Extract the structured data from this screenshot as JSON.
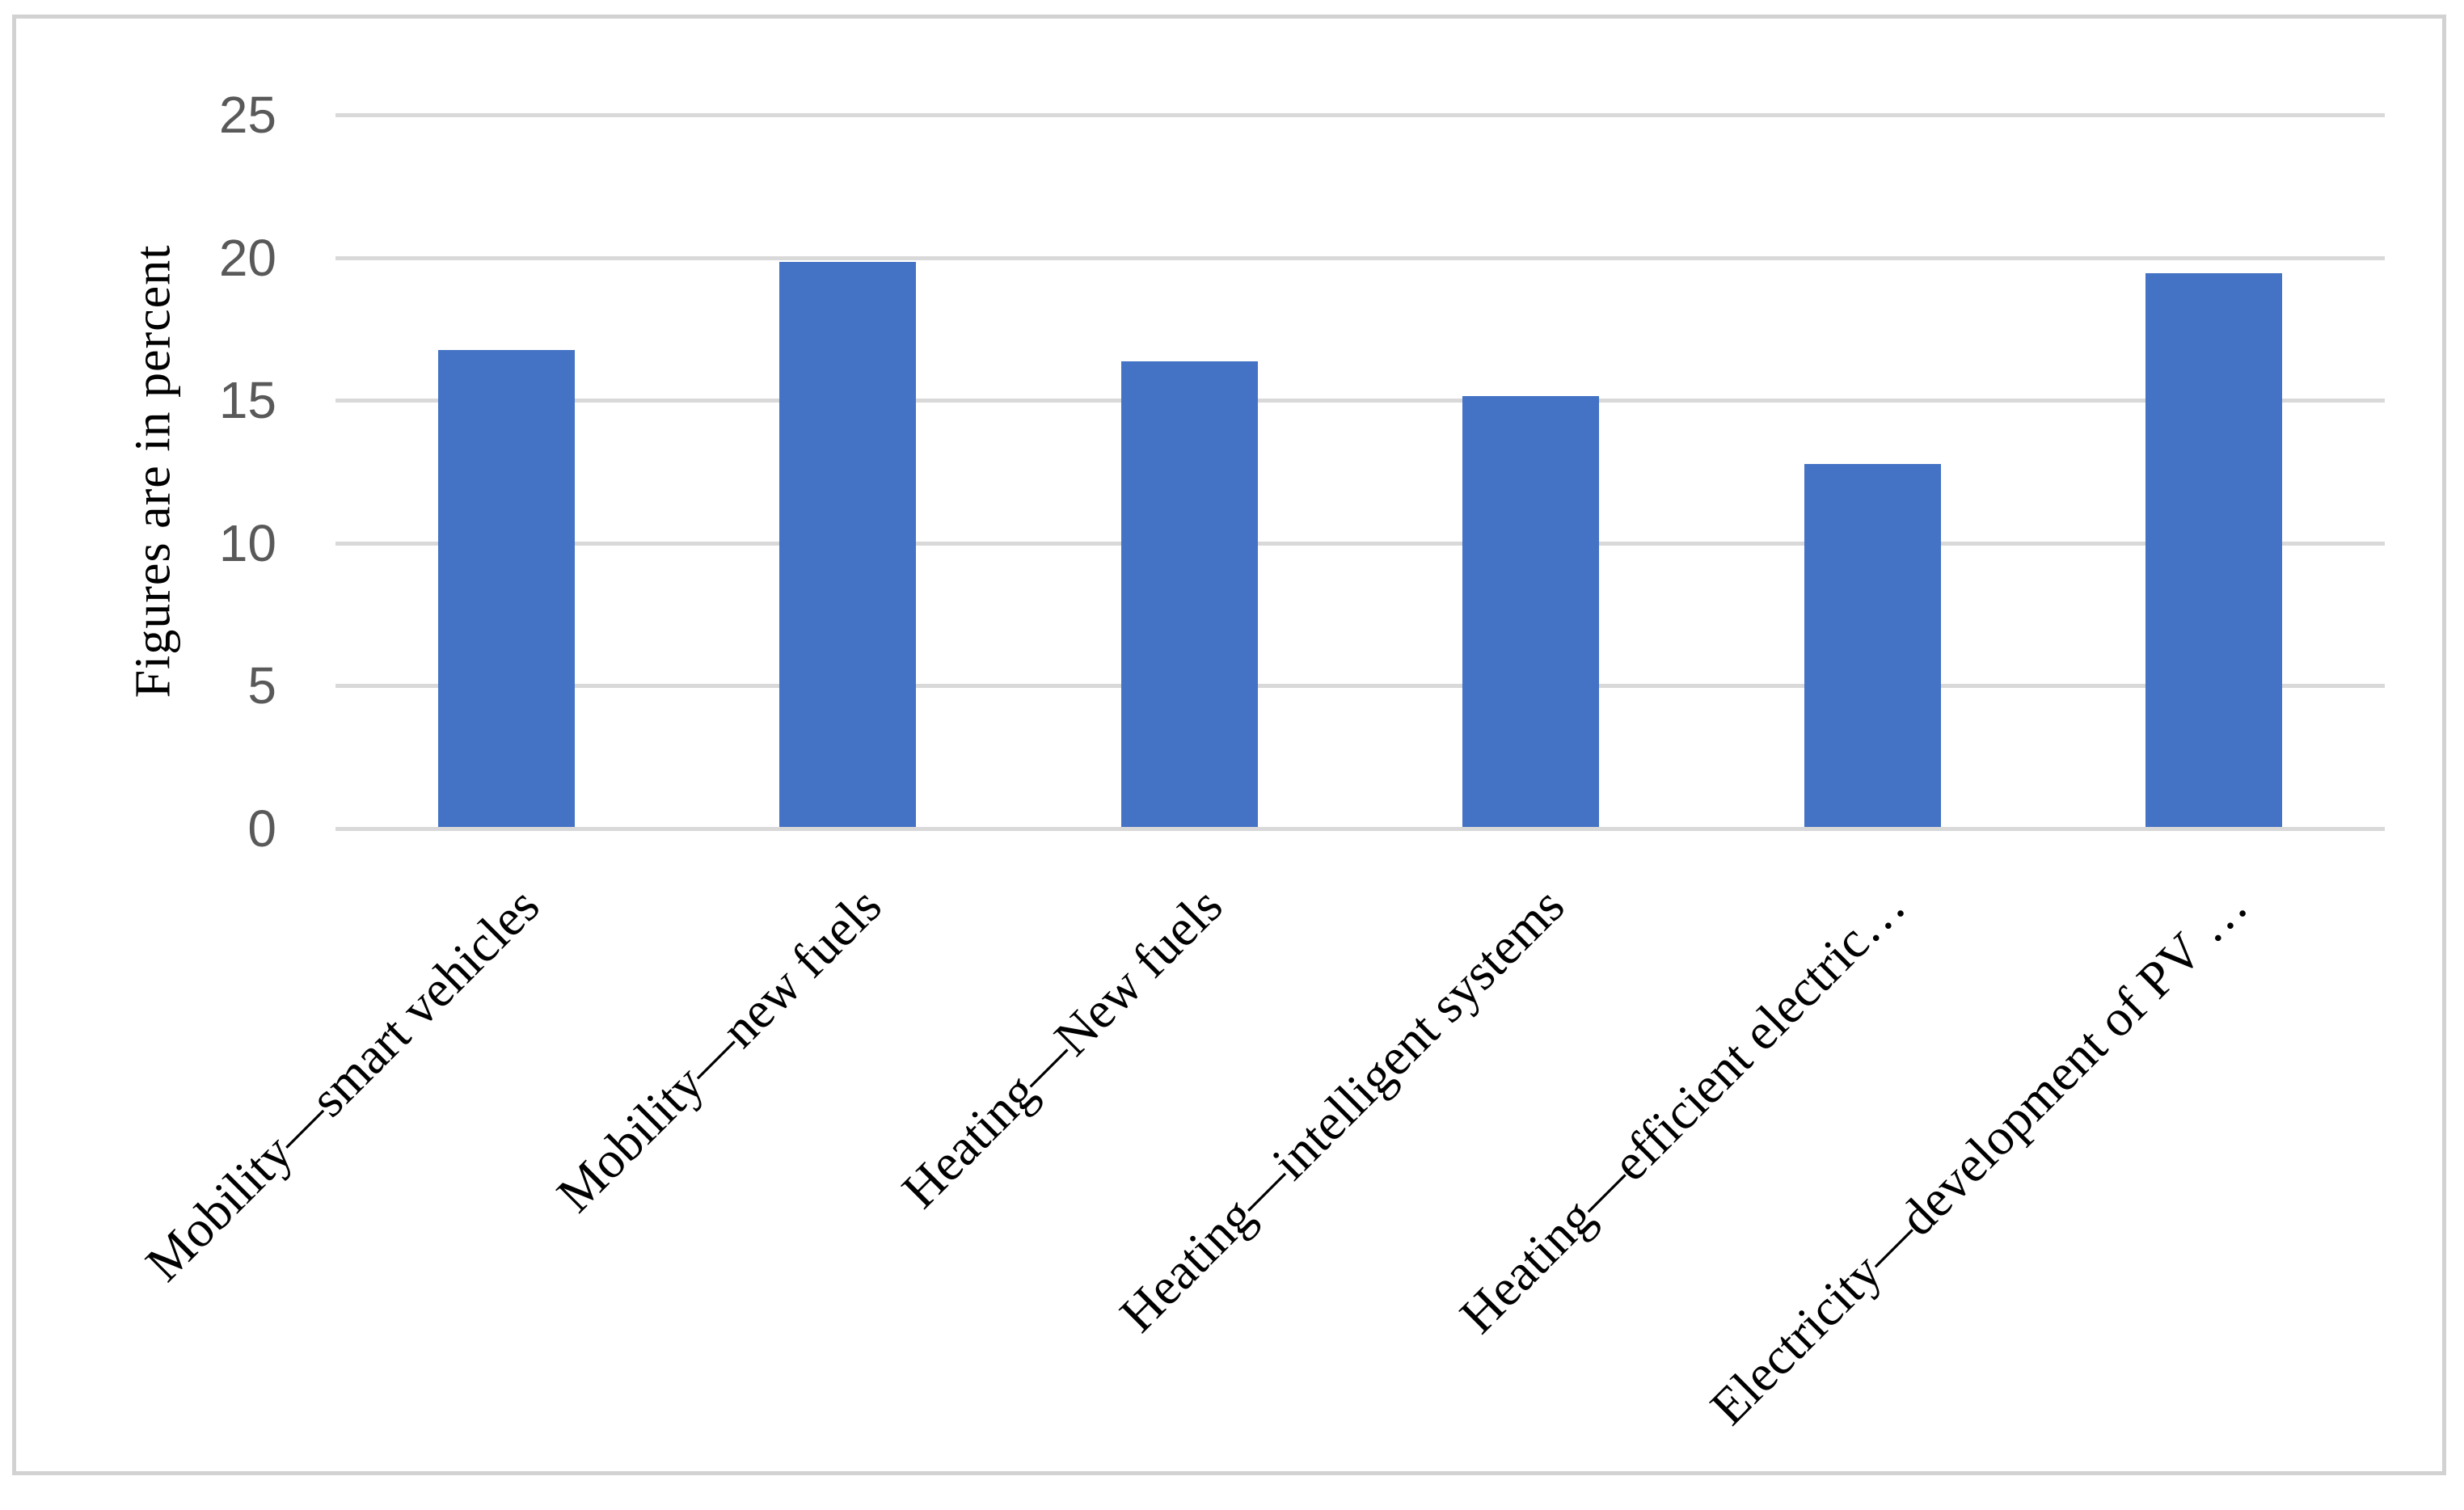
{
  "chart_data": {
    "type": "bar",
    "title": "",
    "ylabel": "Figures are in percent",
    "xlabel": "",
    "categories": [
      "Mobility—smart vehicles",
      "Mobility—new fuels",
      "Heating—New fuels",
      "Heating—intelligent systems",
      "Heating—efficient electric…",
      "Electricity—development of PV …"
    ],
    "values": [
      16.7,
      19.8,
      16.3,
      15.1,
      12.7,
      19.4
    ],
    "ylim": [
      0,
      25
    ],
    "yticks": [
      0,
      5,
      10,
      15,
      20,
      25
    ],
    "grid": true,
    "legend": false,
    "category_label_rotation_deg": 45,
    "units": "percent",
    "bar_color": "#4472c4",
    "gridline_color": "#d9d9d9",
    "axis_tick_label_color": "#595959",
    "category_label_color": "#000000",
    "frame_border_color": "#d2d2d2",
    "background_color": "#ffffff"
  }
}
